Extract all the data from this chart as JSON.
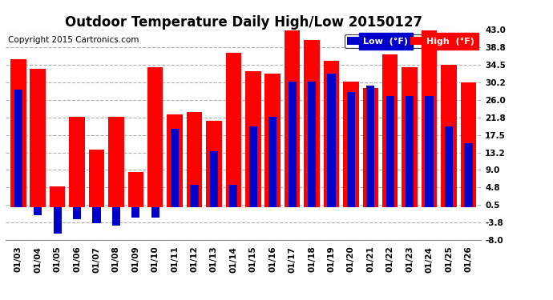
{
  "title": "Outdoor Temperature Daily High/Low 20150127",
  "copyright": "Copyright 2015 Cartronics.com",
  "dates": [
    "01/03",
    "01/04",
    "01/05",
    "01/06",
    "01/07",
    "01/08",
    "01/09",
    "01/10",
    "01/11",
    "01/12",
    "01/13",
    "01/14",
    "01/15",
    "01/16",
    "01/17",
    "01/18",
    "01/19",
    "01/20",
    "01/21",
    "01/22",
    "01/23",
    "01/24",
    "01/25",
    "01/26"
  ],
  "high": [
    36.0,
    33.5,
    5.0,
    22.0,
    14.0,
    22.0,
    8.5,
    34.0,
    22.5,
    23.0,
    21.0,
    37.5,
    33.0,
    32.5,
    44.0,
    40.5,
    35.5,
    30.5,
    29.0,
    37.0,
    34.0,
    44.0,
    34.5,
    30.2
  ],
  "low": [
    28.5,
    -2.0,
    -6.5,
    -3.0,
    -4.0,
    -4.5,
    -2.5,
    -2.5,
    19.0,
    5.5,
    13.5,
    5.5,
    19.5,
    22.0,
    30.5,
    30.5,
    32.5,
    28.0,
    29.5,
    27.0,
    27.0,
    27.0,
    19.5,
    15.5
  ],
  "bar_color_high": "#ff0000",
  "bar_color_low": "#0000cc",
  "background_color": "#ffffff",
  "grid_color": "#b0b0b0",
  "ylim": [
    -8.0,
    43.0
  ],
  "yticks": [
    -8.0,
    -3.8,
    0.5,
    4.8,
    9.0,
    13.2,
    17.5,
    21.8,
    26.0,
    30.2,
    34.5,
    38.8,
    43.0
  ],
  "title_fontsize": 12,
  "copyright_fontsize": 7.5,
  "legend_label_low": "Low  (°F)",
  "legend_label_high": "High  (°F)",
  "fig_width": 6.9,
  "fig_height": 3.75,
  "dpi": 100
}
